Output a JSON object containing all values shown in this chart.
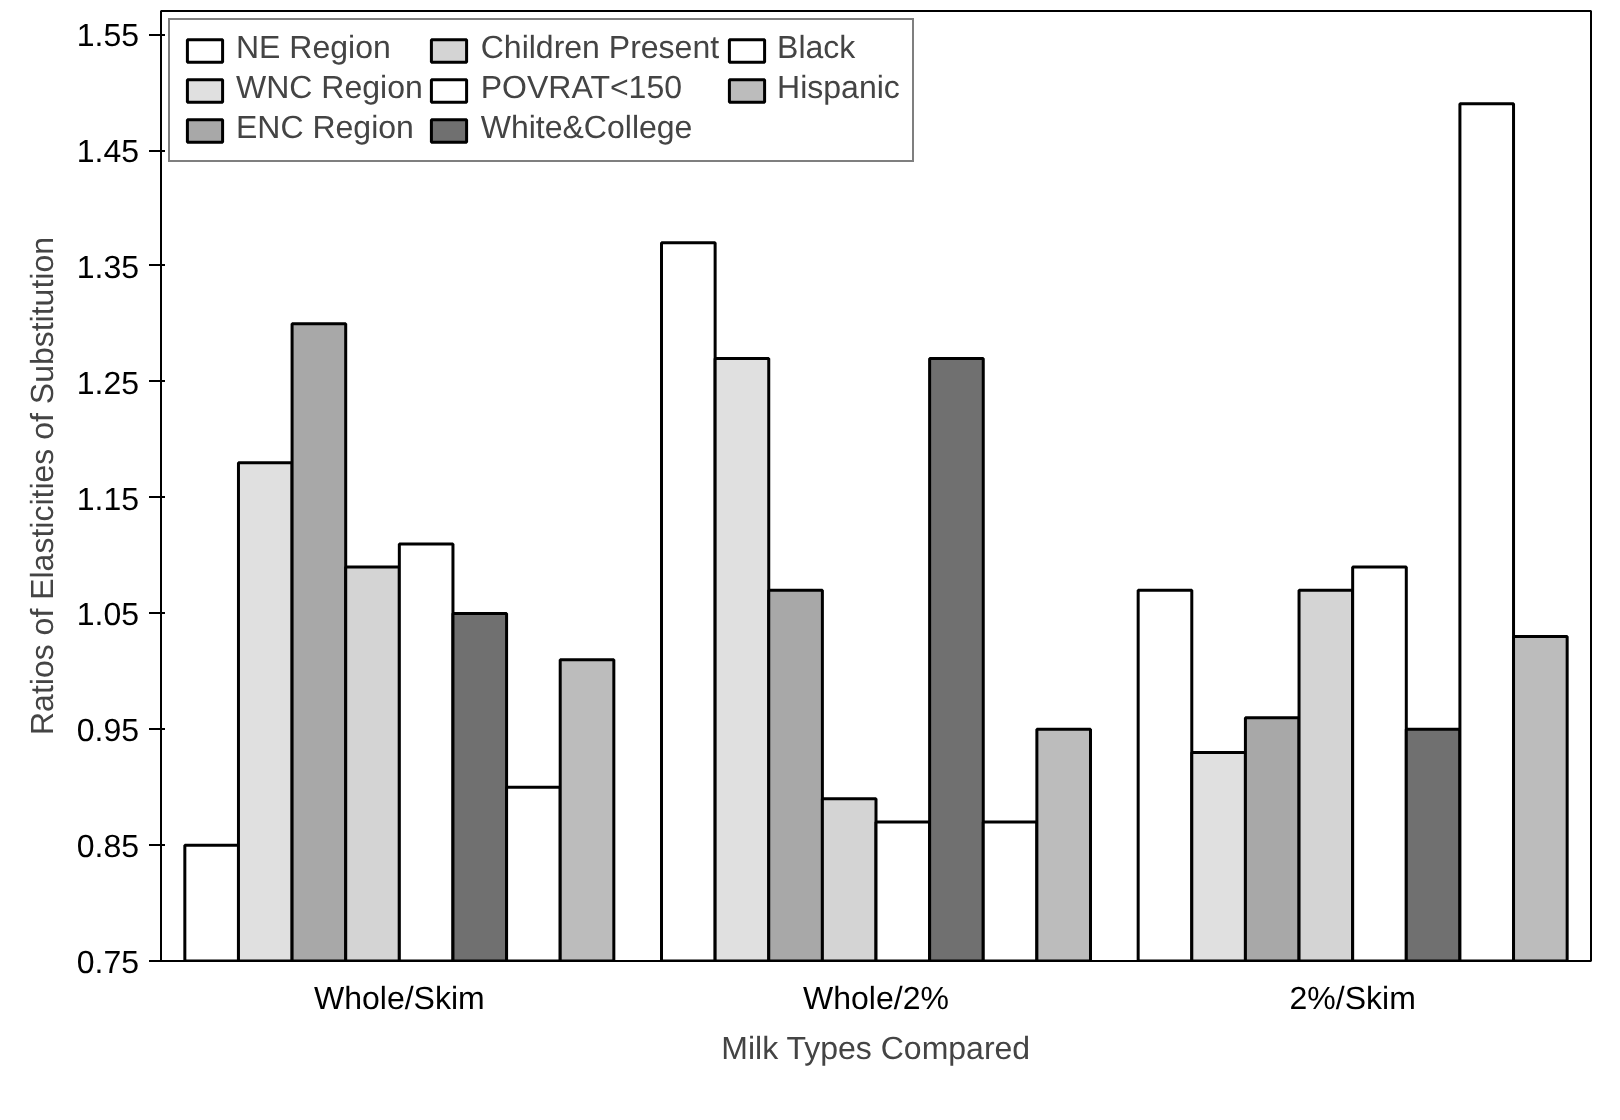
{
  "chart_data": {
    "type": "bar",
    "xlabel": "Milk Types Compared",
    "ylabel": "Ratios of Elasticities of Substitution",
    "categories": [
      "Whole/Skim",
      "Whole/2%",
      "2%/Skim"
    ],
    "series": [
      {
        "name": "NE Region",
        "color": "#ffffff",
        "values": [
          0.85,
          1.37,
          1.07
        ]
      },
      {
        "name": "WNC Region",
        "color": "#e0e0e0",
        "values": [
          1.18,
          1.27,
          0.93
        ]
      },
      {
        "name": "ENC Region",
        "color": "#a8a8a8",
        "values": [
          1.3,
          1.07,
          0.96
        ]
      },
      {
        "name": "Children Present",
        "color": "#d4d4d4",
        "values": [
          1.09,
          0.89,
          1.07
        ]
      },
      {
        "name": "POVRAT<150",
        "color": "#ffffff",
        "values": [
          1.11,
          0.87,
          1.09
        ]
      },
      {
        "name": "White&College",
        "color": "#707070",
        "values": [
          1.05,
          1.27,
          0.95
        ]
      },
      {
        "name": "Black",
        "color": "#ffffff",
        "values": [
          0.9,
          0.87,
          1.49
        ]
      },
      {
        "name": "Hispanic",
        "color": "#bcbcbc",
        "values": [
          1.01,
          0.95,
          1.03
        ]
      }
    ],
    "ylim": [
      0.75,
      1.57
    ],
    "yticks": [
      0.75,
      0.85,
      0.95,
      1.05,
      1.15,
      1.25,
      1.35,
      1.45,
      1.55
    ],
    "grid": false,
    "legend": "top left"
  }
}
